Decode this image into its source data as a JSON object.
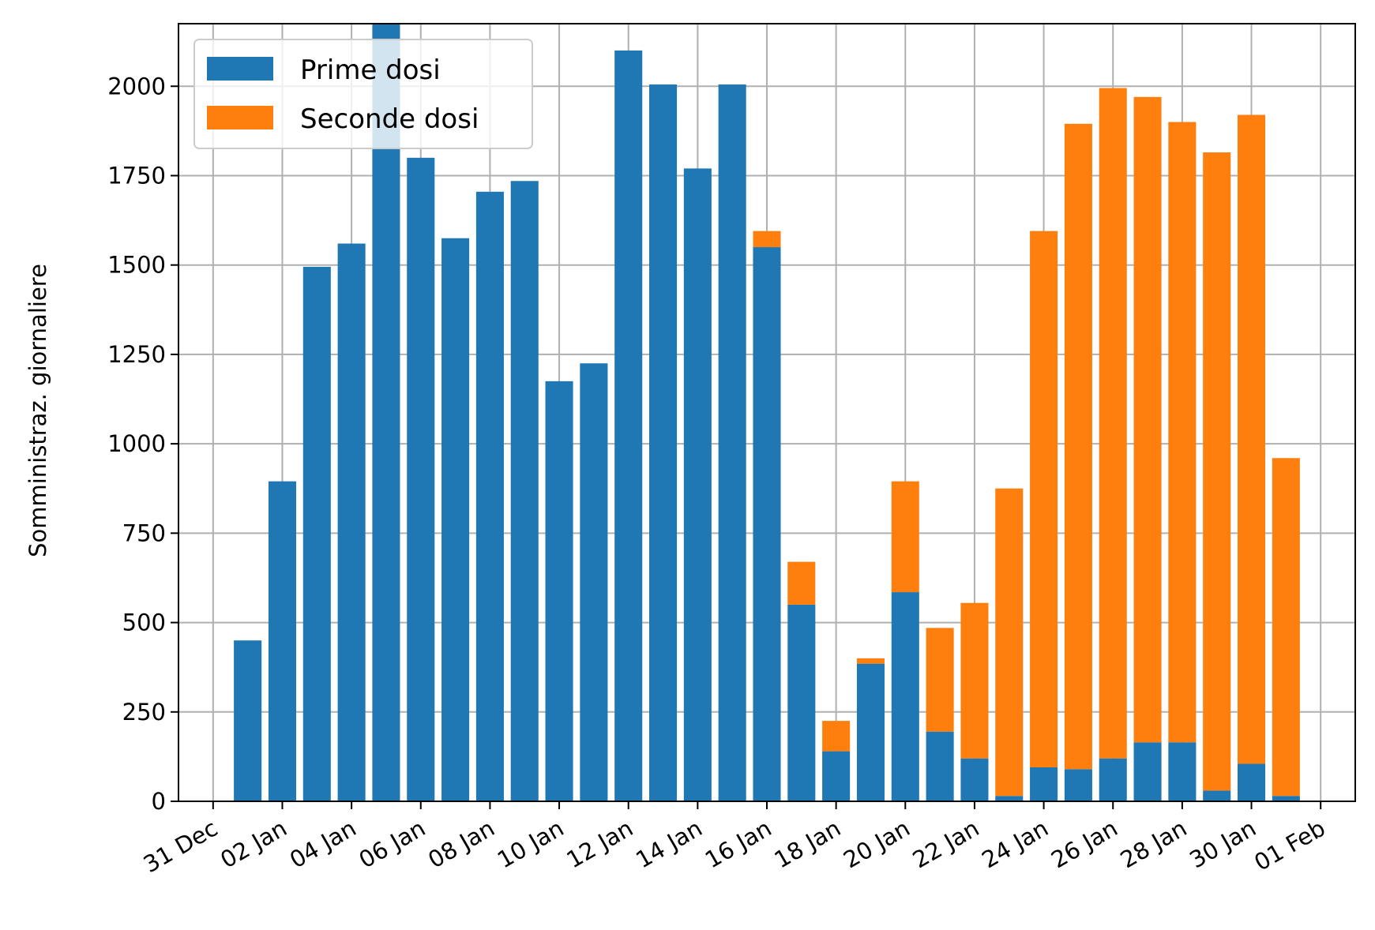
{
  "chart_data": {
    "type": "bar",
    "stacked": true,
    "ylabel": "Somministraz. giornaliere",
    "xlabel": "",
    "ylim": [
      0,
      2175
    ],
    "xlim": [
      "2020-12-30",
      "2021-02-02"
    ],
    "grid": true,
    "legend": "top-left",
    "y_ticks": [
      0,
      250,
      500,
      750,
      1000,
      1250,
      1500,
      1750,
      2000
    ],
    "x_ticks": [
      {
        "date": "2020-12-31",
        "label": "31 Dec"
      },
      {
        "date": "2021-01-02",
        "label": "02 Jan"
      },
      {
        "date": "2021-01-04",
        "label": "04 Jan"
      },
      {
        "date": "2021-01-06",
        "label": "06 Jan"
      },
      {
        "date": "2021-01-08",
        "label": "08 Jan"
      },
      {
        "date": "2021-01-10",
        "label": "10 Jan"
      },
      {
        "date": "2021-01-12",
        "label": "12 Jan"
      },
      {
        "date": "2021-01-14",
        "label": "14 Jan"
      },
      {
        "date": "2021-01-16",
        "label": "16 Jan"
      },
      {
        "date": "2021-01-18",
        "label": "18 Jan"
      },
      {
        "date": "2021-01-20",
        "label": "20 Jan"
      },
      {
        "date": "2021-01-22",
        "label": "22 Jan"
      },
      {
        "date": "2021-01-24",
        "label": "24 Jan"
      },
      {
        "date": "2021-01-26",
        "label": "26 Jan"
      },
      {
        "date": "2021-01-28",
        "label": "28 Jan"
      },
      {
        "date": "2021-01-30",
        "label": "30 Jan"
      },
      {
        "date": "2021-02-01",
        "label": "01 Feb"
      }
    ],
    "x": [
      "2021-01-01",
      "2021-01-02",
      "2021-01-03",
      "2021-01-04",
      "2021-01-05",
      "2021-01-06",
      "2021-01-07",
      "2021-01-08",
      "2021-01-09",
      "2021-01-10",
      "2021-01-11",
      "2021-01-12",
      "2021-01-13",
      "2021-01-14",
      "2021-01-15",
      "2021-01-16",
      "2021-01-17",
      "2021-01-18",
      "2021-01-19",
      "2021-01-20",
      "2021-01-21",
      "2021-01-22",
      "2021-01-23",
      "2021-01-24",
      "2021-01-25",
      "2021-01-26",
      "2021-01-27",
      "2021-01-28",
      "2021-01-29",
      "2021-01-30",
      "2021-01-31"
    ],
    "series": [
      {
        "name": "Prime dosi",
        "color": "#1f77b4",
        "values": [
          450,
          895,
          1495,
          1560,
          2180,
          1800,
          1575,
          1705,
          1735,
          1175,
          1225,
          2100,
          2005,
          1770,
          2005,
          1550,
          550,
          140,
          385,
          585,
          195,
          120,
          15,
          95,
          90,
          120,
          165,
          165,
          30,
          105,
          15
        ]
      },
      {
        "name": "Seconde dosi",
        "color": "#ff7f0e",
        "values": [
          0,
          0,
          0,
          0,
          0,
          0,
          0,
          0,
          0,
          0,
          0,
          0,
          0,
          0,
          0,
          45,
          120,
          85,
          15,
          310,
          290,
          435,
          860,
          1500,
          1805,
          1875,
          1805,
          1735,
          1785,
          1815,
          945
        ]
      }
    ]
  }
}
